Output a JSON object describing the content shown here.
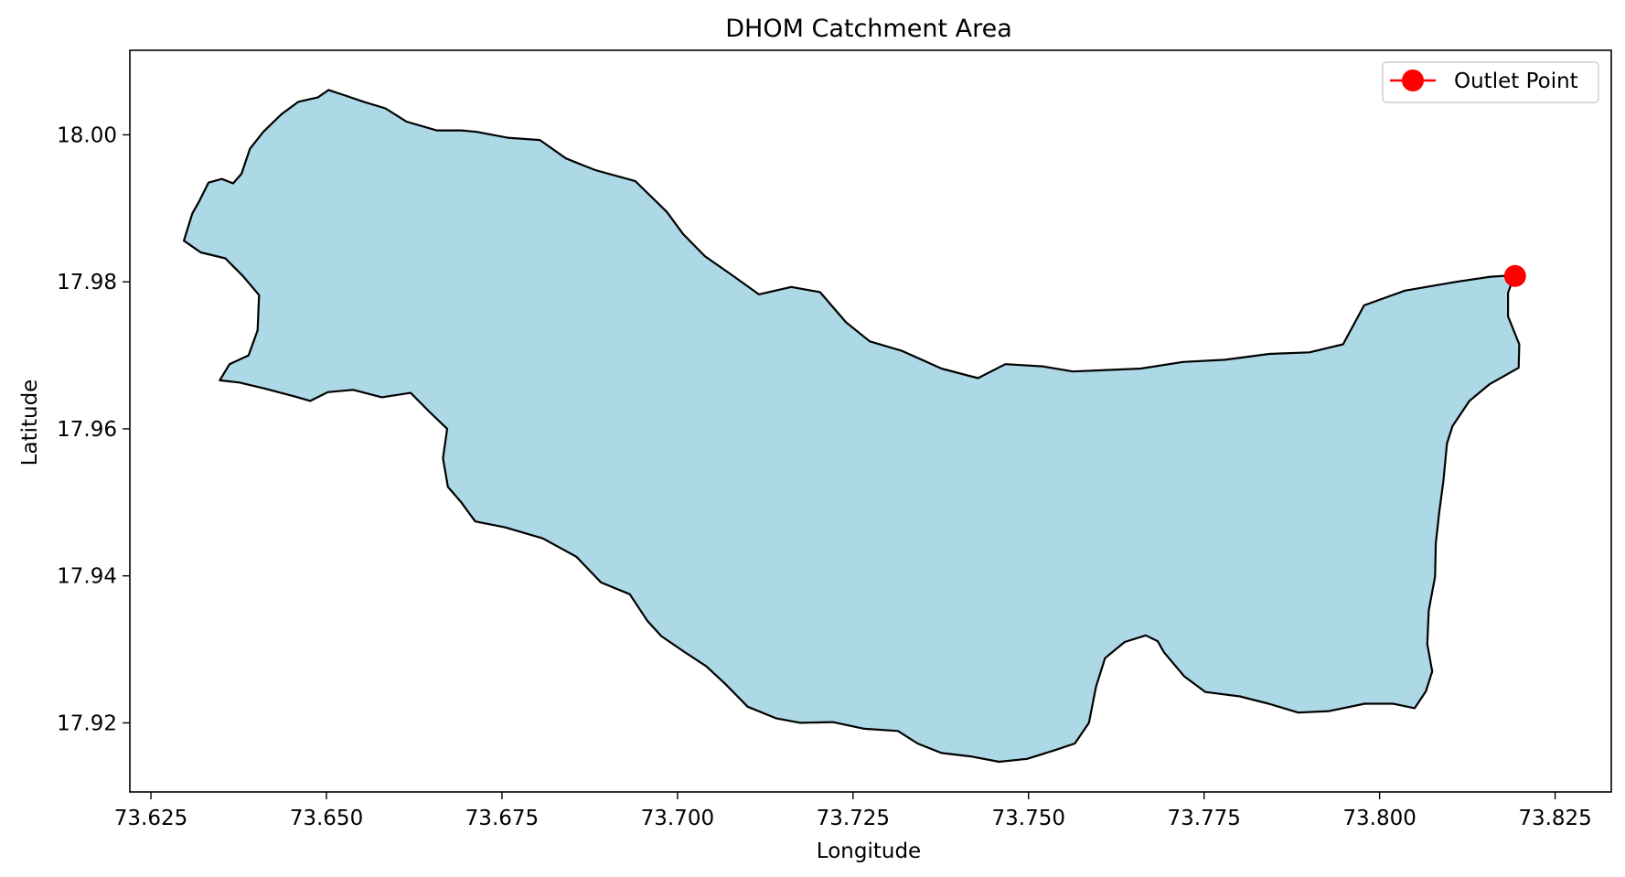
{
  "chart_data": {
    "type": "map",
    "title": "DHOM Catchment Area",
    "xlabel": "Longitude",
    "ylabel": "Latitude",
    "xlim": [
      73.622,
      73.833
    ],
    "ylim": [
      17.9106,
      18.0115
    ],
    "x_ticks": [
      73.625,
      73.65,
      73.675,
      73.7,
      73.725,
      73.75,
      73.775,
      73.8,
      73.825
    ],
    "x_tick_labels": [
      "73.625",
      "73.650",
      "73.675",
      "73.700",
      "73.725",
      "73.750",
      "73.775",
      "73.800",
      "73.825"
    ],
    "y_ticks": [
      17.92,
      17.94,
      17.96,
      17.98,
      18.0
    ],
    "y_tick_labels": [
      "17.92",
      "17.94",
      "17.96",
      "17.98",
      "18.00"
    ],
    "grid": false,
    "legend": {
      "placement": "top-right",
      "entries": [
        {
          "label": "Outlet Point",
          "color": "#ff0000",
          "marker": "circle-with-line"
        }
      ]
    },
    "catchment": {
      "fill": "#add8e6",
      "edge": "#000000",
      "boundary": [
        [
          73.6297,
          17.9856
        ],
        [
          73.6309,
          17.9893
        ],
        [
          73.6319,
          17.991
        ],
        [
          73.6332,
          17.9935
        ],
        [
          73.6351,
          17.994
        ],
        [
          73.6367,
          17.9934
        ],
        [
          73.6379,
          17.9947
        ],
        [
          73.6391,
          17.9981
        ],
        [
          73.641,
          18.0004
        ],
        [
          73.6436,
          18.0028
        ],
        [
          73.646,
          18.0045
        ],
        [
          73.6488,
          18.0051
        ],
        [
          73.6503,
          18.0061
        ],
        [
          73.6525,
          18.0054
        ],
        [
          73.6553,
          18.0045
        ],
        [
          73.6584,
          18.0036
        ],
        [
          73.6614,
          18.0018
        ],
        [
          73.6657,
          18.0006
        ],
        [
          73.6692,
          18.0006
        ],
        [
          73.6714,
          18.0004
        ],
        [
          73.6758,
          17.9996
        ],
        [
          73.6804,
          17.9993
        ],
        [
          73.6841,
          17.9968
        ],
        [
          73.6883,
          17.9952
        ],
        [
          73.694,
          17.9937
        ],
        [
          73.6985,
          17.9895
        ],
        [
          73.7008,
          17.9865
        ],
        [
          73.7039,
          17.9835
        ],
        [
          73.7078,
          17.9809
        ],
        [
          73.7116,
          17.9783
        ],
        [
          73.7162,
          17.9793
        ],
        [
          73.7203,
          17.9786
        ],
        [
          73.724,
          17.9745
        ],
        [
          73.7274,
          17.9719
        ],
        [
          73.732,
          17.9706
        ],
        [
          73.7376,
          17.9682
        ],
        [
          73.7428,
          17.9669
        ],
        [
          73.7467,
          17.9688
        ],
        [
          73.752,
          17.9685
        ],
        [
          73.7563,
          17.9678
        ],
        [
          73.7612,
          17.968
        ],
        [
          73.766,
          17.9682
        ],
        [
          73.772,
          17.9691
        ],
        [
          73.778,
          17.9694
        ],
        [
          73.7843,
          17.9702
        ],
        [
          73.79,
          17.9704
        ],
        [
          73.7948,
          17.9715
        ],
        [
          73.7978,
          17.9768
        ],
        [
          73.8036,
          17.9788
        ],
        [
          73.8109,
          17.98
        ],
        [
          73.8158,
          17.9807
        ],
        [
          73.8192,
          17.9809
        ],
        [
          73.8183,
          17.9785
        ],
        [
          73.8183,
          17.9753
        ],
        [
          73.8199,
          17.9715
        ],
        [
          73.8198,
          17.9683
        ],
        [
          73.8157,
          17.9661
        ],
        [
          73.8128,
          17.9638
        ],
        [
          73.8104,
          17.9604
        ],
        [
          73.8096,
          17.958
        ],
        [
          73.8091,
          17.953
        ],
        [
          73.8085,
          17.9487
        ],
        [
          73.808,
          17.9444
        ],
        [
          73.8079,
          17.9399
        ],
        [
          73.807,
          17.9353
        ],
        [
          73.8068,
          17.9307
        ],
        [
          73.8075,
          17.927
        ],
        [
          73.8066,
          17.9243
        ],
        [
          73.805,
          17.922
        ],
        [
          73.8019,
          17.9226
        ],
        [
          73.7979,
          17.9226
        ],
        [
          73.7928,
          17.9216
        ],
        [
          73.7884,
          17.9214
        ],
        [
          73.7842,
          17.9226
        ],
        [
          73.7801,
          17.9236
        ],
        [
          73.7752,
          17.9242
        ],
        [
          73.7722,
          17.9263
        ],
        [
          73.7693,
          17.9296
        ],
        [
          73.7684,
          17.9311
        ],
        [
          73.7667,
          17.9319
        ],
        [
          73.7637,
          17.931
        ],
        [
          73.7609,
          17.9288
        ],
        [
          73.7596,
          17.9249
        ],
        [
          73.7586,
          17.92
        ],
        [
          73.7566,
          17.9172
        ],
        [
          73.7538,
          17.9163
        ],
        [
          73.7498,
          17.9151
        ],
        [
          73.7458,
          17.9147
        ],
        [
          73.742,
          17.9154
        ],
        [
          73.7376,
          17.9159
        ],
        [
          73.7342,
          17.9172
        ],
        [
          73.7314,
          17.9189
        ],
        [
          73.7266,
          17.9192
        ],
        [
          73.7221,
          17.9201
        ],
        [
          73.7175,
          17.92
        ],
        [
          73.7141,
          17.9206
        ],
        [
          73.71,
          17.9222
        ],
        [
          73.7068,
          17.9253
        ],
        [
          73.7041,
          17.9277
        ],
        [
          73.7009,
          17.9297
        ],
        [
          73.6977,
          17.9318
        ],
        [
          73.6957,
          17.9339
        ],
        [
          73.6932,
          17.9375
        ],
        [
          73.6891,
          17.9391
        ],
        [
          73.6856,
          17.9426
        ],
        [
          73.6808,
          17.9451
        ],
        [
          73.6754,
          17.9466
        ],
        [
          73.6712,
          17.9474
        ],
        [
          73.6692,
          17.95
        ],
        [
          73.6673,
          17.9521
        ],
        [
          73.6666,
          17.956
        ],
        [
          73.6672,
          17.96
        ],
        [
          73.6647,
          17.9623
        ],
        [
          73.662,
          17.9649
        ],
        [
          73.6579,
          17.9643
        ],
        [
          73.6538,
          17.9653
        ],
        [
          73.6502,
          17.965
        ],
        [
          73.6477,
          17.9638
        ],
        [
          73.6455,
          17.9644
        ],
        [
          73.6411,
          17.9655
        ],
        [
          73.6376,
          17.9663
        ],
        [
          73.6348,
          17.9666
        ],
        [
          73.6362,
          17.9688
        ],
        [
          73.6389,
          17.97
        ],
        [
          73.6402,
          17.9734
        ],
        [
          73.6404,
          17.9782
        ],
        [
          73.6381,
          17.9808
        ],
        [
          73.6356,
          17.9832
        ],
        [
          73.6321,
          17.984
        ],
        [
          73.6297,
          17.9856
        ]
      ]
    },
    "outlet_point": {
      "label": "Outlet Point",
      "lon": 73.8193,
      "lat": 17.9808,
      "color": "#ff0000"
    }
  }
}
